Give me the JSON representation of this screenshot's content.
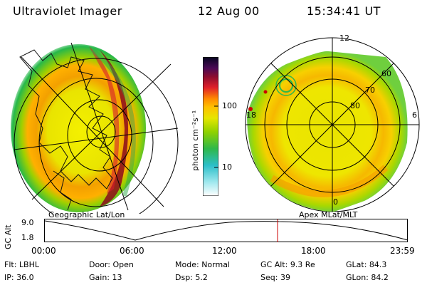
{
  "header": {
    "instrument": "Ultraviolet Imager",
    "date": "12 Aug 00",
    "time": "15:34:41 UT"
  },
  "left_panel": {
    "caption": "Geographic Lat/Lon"
  },
  "right_panel": {
    "caption": "Apex MLat/MLT",
    "mlt_labels": [
      "12",
      "18",
      "6",
      "0"
    ],
    "lat_labels": [
      "60",
      "70",
      "80"
    ]
  },
  "colorbar": {
    "unit_label": "photon cm⁻²s⁻¹",
    "ticks": [
      "100",
      "10"
    ]
  },
  "altitude_plot": {
    "axis_label": "GC Alt",
    "y_ticks": [
      "9.0",
      "1.8"
    ],
    "x_ticks": [
      "00:00",
      "06:00",
      "12:00",
      "18:00",
      "23:59"
    ],
    "marker_color": "#cc0000"
  },
  "info": {
    "flt": {
      "label": "Flt:",
      "value": "LBHL"
    },
    "ip": {
      "label": "IP:",
      "value": "36.0"
    },
    "door": {
      "label": "Door:",
      "value": "Open"
    },
    "gain": {
      "label": "Gain:",
      "value": "13"
    },
    "mode": {
      "label": "Mode:",
      "value": "Normal"
    },
    "dsp": {
      "label": "Dsp:",
      "value": "5.2"
    },
    "gcalt": {
      "label": "GC Alt:",
      "value": "9.3 Re"
    },
    "seq": {
      "label": "Seq:",
      "value": "39"
    },
    "glat": {
      "label": "GLat:",
      "value": "84.3"
    },
    "glon": {
      "label": "GLon:",
      "value": "84.2"
    }
  }
}
